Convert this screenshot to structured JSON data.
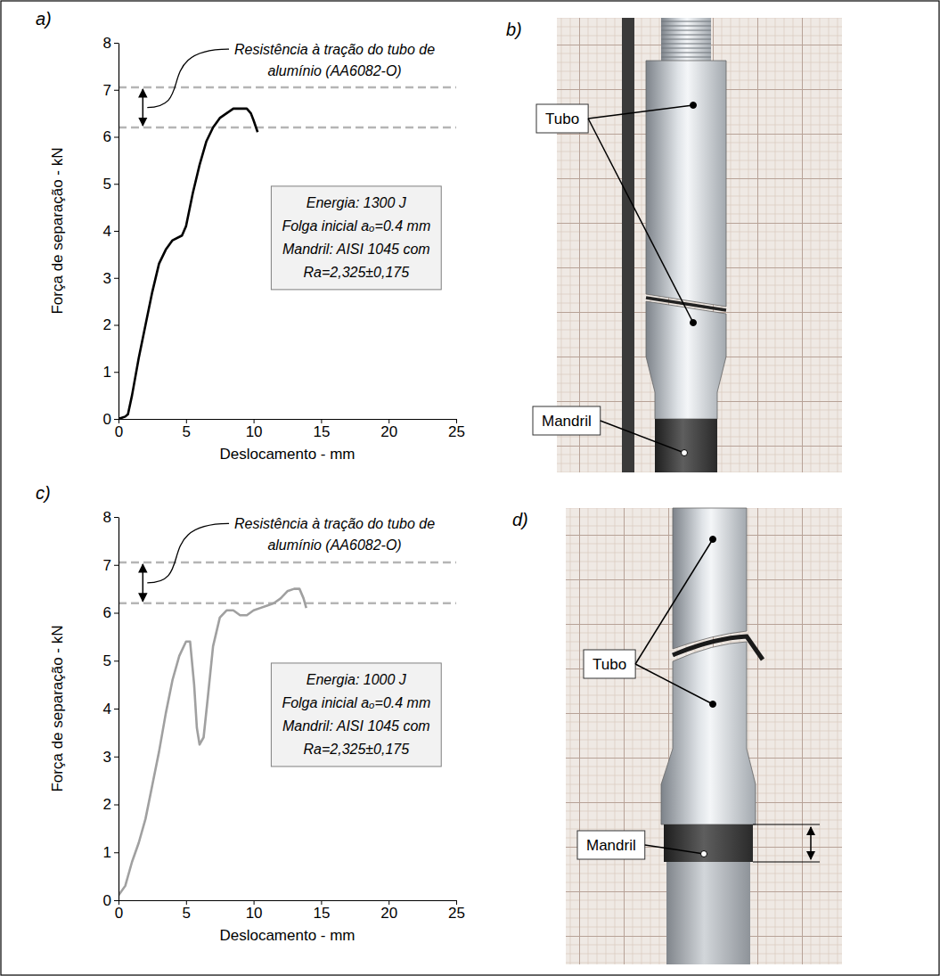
{
  "chart_data": [
    {
      "type": "line",
      "panel": "a)",
      "annotation": "Resistência à tração do tubo de alumínio (AA6082-O)",
      "notes": [
        "Energia: 1300 J",
        "Folga inicial aₒ=0.4 mm",
        "Mandril: AISI 1045 com",
        "Ra=2,325±0,175"
      ],
      "x_label": "Deslocamento - mm",
      "y_label": "Força de separação - kN",
      "xlim": [
        0,
        25
      ],
      "xticks": [
        0,
        5,
        10,
        15,
        20,
        25
      ],
      "ylim": [
        0,
        8
      ],
      "yticks": [
        0,
        1,
        2,
        3,
        4,
        5,
        6,
        7,
        8
      ],
      "reference_lines": [
        6.2,
        7.05
      ],
      "color": "#000000",
      "x": [
        0,
        0.5,
        0.7,
        1,
        1.5,
        2,
        2.5,
        3,
        3.5,
        4,
        4.7,
        5,
        5.5,
        6,
        6.5,
        7,
        7.5,
        8,
        8.5,
        9,
        9.5,
        9.8,
        10,
        10.3
      ],
      "values": [
        0,
        0.05,
        0.1,
        0.5,
        1.3,
        2.0,
        2.7,
        3.3,
        3.6,
        3.8,
        3.9,
        4.1,
        4.8,
        5.4,
        5.9,
        6.2,
        6.4,
        6.5,
        6.6,
        6.6,
        6.6,
        6.5,
        6.35,
        6.1
      ]
    },
    {
      "type": "line",
      "panel": "c)",
      "annotation": "Resistência à tração do tubo de alumínio (AA6082-O)",
      "notes": [
        "Energia: 1000 J",
        "Folga inicial aₒ=0.4 mm",
        "Mandril: AISI 1045 com",
        "Ra=2,325±0,175"
      ],
      "x_label": "Deslocamento - mm",
      "y_label": "Força de separação - kN",
      "xlim": [
        0,
        25
      ],
      "xticks": [
        0,
        5,
        10,
        15,
        20,
        25
      ],
      "ylim": [
        0,
        8
      ],
      "yticks": [
        0,
        1,
        2,
        3,
        4,
        5,
        6,
        7,
        8
      ],
      "reference_lines": [
        6.2,
        7.05
      ],
      "color": "#a0a0a0",
      "x": [
        0,
        0.5,
        1,
        1.5,
        2,
        2.5,
        3,
        3.5,
        4,
        4.5,
        5,
        5.3,
        5.6,
        5.8,
        6,
        6.3,
        6.6,
        7,
        7.5,
        8,
        8.5,
        9,
        9.5,
        10,
        10.5,
        11,
        11.5,
        12,
        12.5,
        13,
        13.4,
        13.7,
        13.9
      ],
      "values": [
        0.1,
        0.3,
        0.8,
        1.2,
        1.7,
        2.4,
        3.1,
        3.9,
        4.6,
        5.1,
        5.4,
        5.4,
        4.5,
        3.6,
        3.25,
        3.4,
        4.2,
        5.3,
        5.9,
        6.05,
        6.05,
        5.95,
        5.95,
        6.05,
        6.1,
        6.15,
        6.2,
        6.3,
        6.45,
        6.5,
        6.5,
        6.3,
        6.1
      ]
    }
  ],
  "figures": [
    {
      "panel": "b)",
      "labels": [
        "Tubo",
        "Mandril"
      ]
    },
    {
      "panel": "d)",
      "labels": [
        "Tubo",
        "Mandril"
      ]
    }
  ]
}
